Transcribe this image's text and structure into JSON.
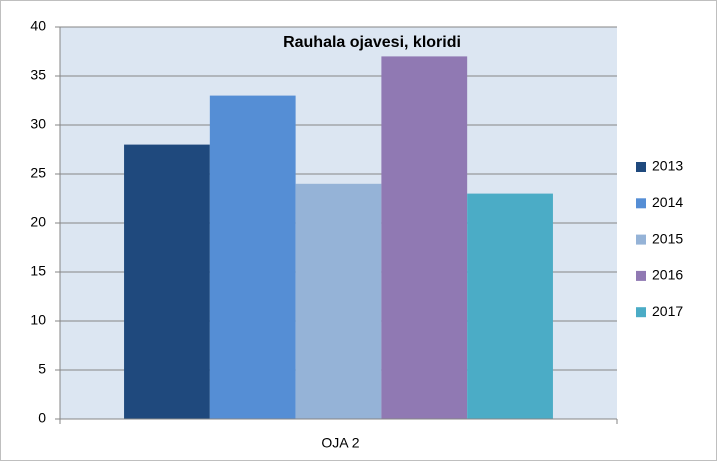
{
  "chart_data": {
    "type": "bar",
    "title": "Rauhala ojavesi, kloridi",
    "categories": [
      "OJA 2"
    ],
    "series": [
      {
        "name": "2013",
        "color": "#1f497d",
        "values": [
          28
        ]
      },
      {
        "name": "2014",
        "color": "#558ed5",
        "values": [
          33
        ]
      },
      {
        "name": "2015",
        "color": "#95b3d7",
        "values": [
          24
        ]
      },
      {
        "name": "2016",
        "color": "#9079b3",
        "values": [
          37
        ]
      },
      {
        "name": "2017",
        "color": "#4bacc6",
        "values": [
          23
        ]
      }
    ],
    "ylim": [
      0,
      40
    ],
    "yticks": [
      0,
      5,
      10,
      15,
      20,
      25,
      30,
      35,
      40
    ],
    "grid": true,
    "legend": "right"
  }
}
